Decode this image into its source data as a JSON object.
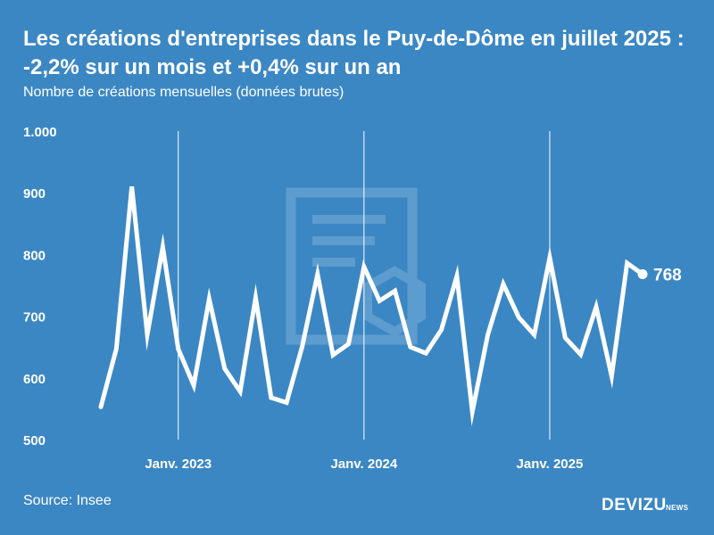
{
  "header": {
    "title": "Les créations d'entreprises dans le Puy-de-Dôme en juillet 2025 : -2,2% sur un mois et +0,4% sur un an",
    "subtitle": "Nombre de créations mensuelles (données brutes)"
  },
  "footer": {
    "source": "Source: Insee",
    "brand": "DEVIZU",
    "brand_suffix": "NEWS"
  },
  "chart_data": {
    "type": "line",
    "x": [
      "2022-08",
      "2022-09",
      "2022-10",
      "2022-11",
      "2022-12",
      "2023-01",
      "2023-02",
      "2023-03",
      "2023-04",
      "2023-05",
      "2023-06",
      "2023-07",
      "2023-08",
      "2023-09",
      "2023-10",
      "2023-11",
      "2023-12",
      "2024-01",
      "2024-02",
      "2024-03",
      "2024-04",
      "2024-05",
      "2024-06",
      "2024-07",
      "2024-08",
      "2024-09",
      "2024-10",
      "2024-11",
      "2024-12",
      "2025-01",
      "2025-02",
      "2025-03",
      "2025-04",
      "2025-05",
      "2025-06",
      "2025-07"
    ],
    "series": [
      {
        "values": [
          553,
          647,
          910,
          670,
          812,
          647,
          588,
          728,
          615,
          578,
          730,
          568,
          560,
          650,
          768,
          637,
          655,
          780,
          725,
          741,
          650,
          640,
          678,
          765,
          545,
          670,
          752,
          698,
          670,
          795,
          665,
          638,
          715,
          603,
          786,
          768
        ]
      }
    ],
    "ylim": [
      500,
      1000
    ],
    "yticks": [
      500,
      600,
      700,
      800,
      900,
      1000
    ],
    "ytick_labels": [
      "500",
      "600",
      "700",
      "800",
      "900",
      "1.000"
    ],
    "xticks": [
      {
        "x": "2023-01",
        "label": "Janv. 2023"
      },
      {
        "x": "2024-01",
        "label": "Janv. 2024"
      },
      {
        "x": "2025-01",
        "label": "Janv. 2025"
      }
    ],
    "end_label": "768",
    "vertical_gridlines_at_xticks": true,
    "line_color": "#ffffff",
    "background_color": "#3b87c4"
  }
}
